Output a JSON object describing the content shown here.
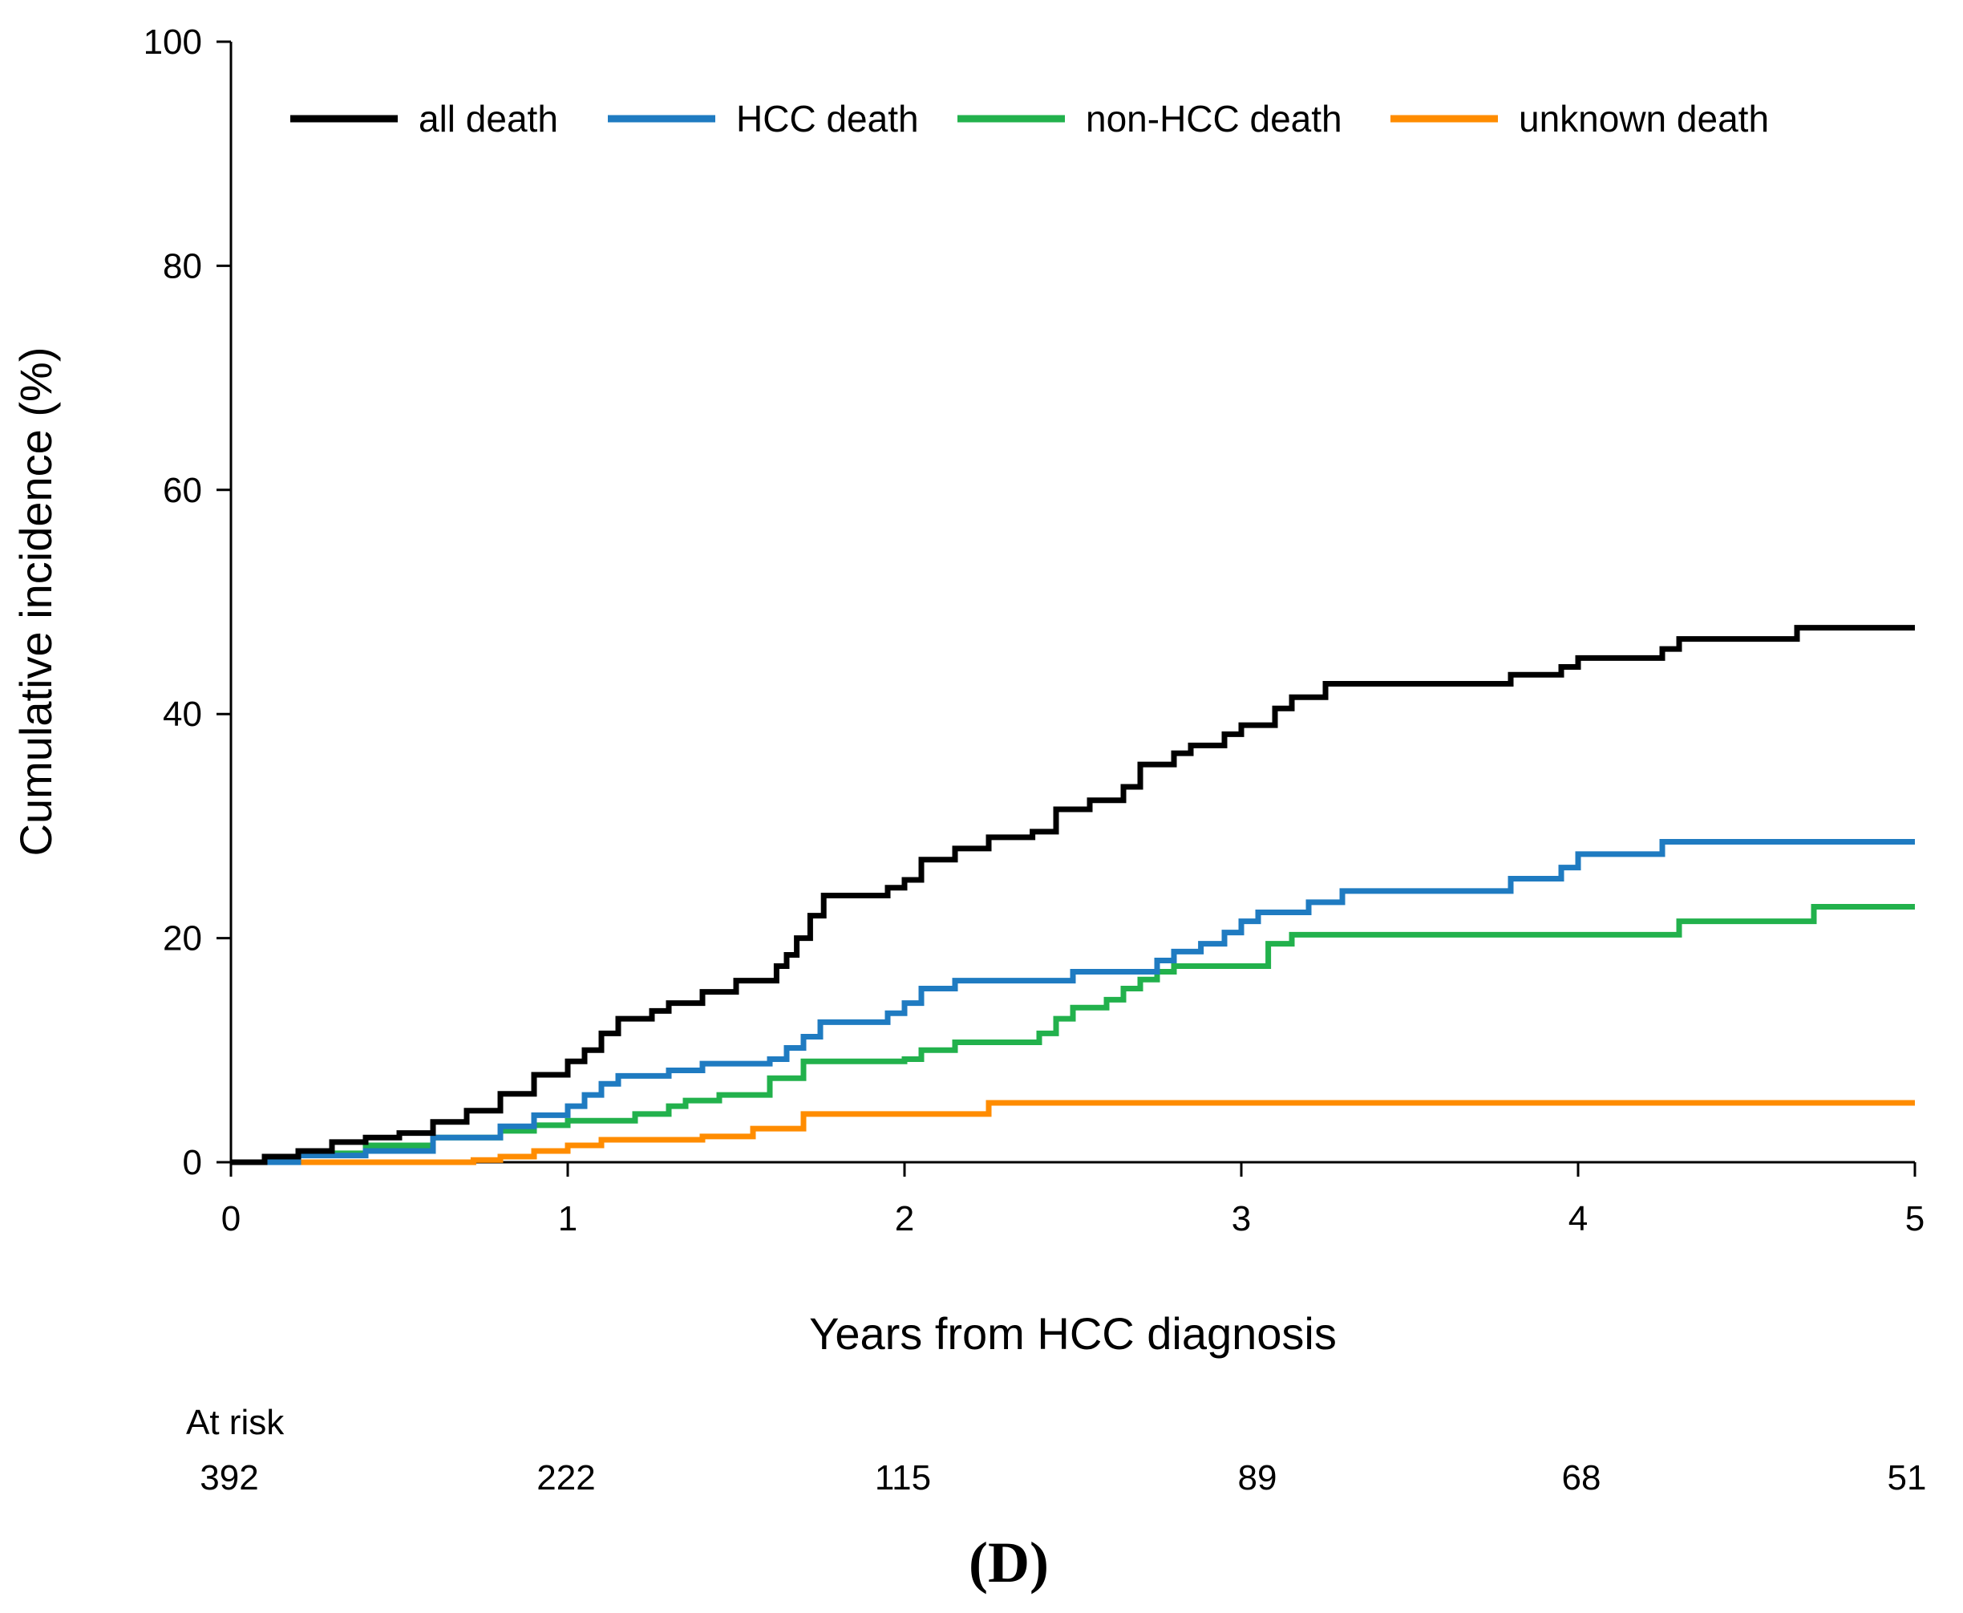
{
  "chart_data": {
    "type": "line",
    "step": true,
    "title": "",
    "xlabel": "Years from HCC diagnosis",
    "ylabel": "Cumulative incidence (%)",
    "xlim": [
      0,
      5
    ],
    "ylim": [
      0,
      100
    ],
    "x_ticks": [
      0,
      1,
      2,
      3,
      4,
      5
    ],
    "y_ticks": [
      0,
      20,
      40,
      60,
      80,
      100
    ],
    "grid": false,
    "legend_position": "top",
    "panel_label": "(D)",
    "at_risk": {
      "label": "At risk",
      "times": [
        0,
        1,
        2,
        3,
        4,
        5
      ],
      "counts": [
        "392",
        "222",
        "115",
        "89",
        "68",
        "51"
      ]
    },
    "series": [
      {
        "name": "all death",
        "color": "#000000",
        "points": [
          [
            0,
            0
          ],
          [
            0.1,
            0.5
          ],
          [
            0.2,
            1.0
          ],
          [
            0.3,
            1.8
          ],
          [
            0.4,
            2.2
          ],
          [
            0.5,
            2.6
          ],
          [
            0.6,
            3.6
          ],
          [
            0.7,
            4.6
          ],
          [
            0.8,
            6.1
          ],
          [
            0.9,
            7.8
          ],
          [
            1.0,
            9.0
          ],
          [
            1.05,
            10.0
          ],
          [
            1.1,
            11.5
          ],
          [
            1.15,
            12.8
          ],
          [
            1.25,
            13.5
          ],
          [
            1.3,
            14.2
          ],
          [
            1.4,
            15.2
          ],
          [
            1.5,
            16.2
          ],
          [
            1.62,
            17.5
          ],
          [
            1.65,
            18.5
          ],
          [
            1.68,
            20.0
          ],
          [
            1.72,
            22.0
          ],
          [
            1.76,
            23.8
          ],
          [
            1.9,
            23.8
          ],
          [
            1.95,
            24.5
          ],
          [
            2.0,
            25.2
          ],
          [
            2.05,
            27.0
          ],
          [
            2.15,
            28.0
          ],
          [
            2.25,
            29.0
          ],
          [
            2.38,
            29.5
          ],
          [
            2.45,
            31.5
          ],
          [
            2.55,
            32.3
          ],
          [
            2.65,
            33.5
          ],
          [
            2.7,
            35.5
          ],
          [
            2.8,
            36.5
          ],
          [
            2.85,
            37.2
          ],
          [
            2.95,
            38.2
          ],
          [
            3.0,
            39.0
          ],
          [
            3.1,
            40.5
          ],
          [
            3.15,
            41.5
          ],
          [
            3.25,
            42.7
          ],
          [
            3.8,
            43.5
          ],
          [
            3.95,
            44.2
          ],
          [
            4.0,
            45.0
          ],
          [
            4.25,
            45.8
          ],
          [
            4.3,
            46.7
          ],
          [
            4.65,
            47.7
          ],
          [
            5.0,
            47.7
          ]
        ]
      },
      {
        "name": "HCC death",
        "color": "#1f7bc1",
        "points": [
          [
            0,
            0
          ],
          [
            0.2,
            0.6
          ],
          [
            0.4,
            1.0
          ],
          [
            0.6,
            2.2
          ],
          [
            0.8,
            3.2
          ],
          [
            0.9,
            4.2
          ],
          [
            1.0,
            5.0
          ],
          [
            1.05,
            6.0
          ],
          [
            1.1,
            7.0
          ],
          [
            1.15,
            7.7
          ],
          [
            1.3,
            8.2
          ],
          [
            1.4,
            8.8
          ],
          [
            1.6,
            9.2
          ],
          [
            1.65,
            10.2
          ],
          [
            1.7,
            11.2
          ],
          [
            1.75,
            12.5
          ],
          [
            1.95,
            13.3
          ],
          [
            2.0,
            14.2
          ],
          [
            2.05,
            15.5
          ],
          [
            2.15,
            16.2
          ],
          [
            2.5,
            17.0
          ],
          [
            2.75,
            18.0
          ],
          [
            2.8,
            18.8
          ],
          [
            2.88,
            19.5
          ],
          [
            2.95,
            20.5
          ],
          [
            3.0,
            21.5
          ],
          [
            3.05,
            22.3
          ],
          [
            3.2,
            23.2
          ],
          [
            3.3,
            24.2
          ],
          [
            3.8,
            25.3
          ],
          [
            3.95,
            26.3
          ],
          [
            4.0,
            27.5
          ],
          [
            4.25,
            28.6
          ],
          [
            5.0,
            28.6
          ]
        ]
      },
      {
        "name": "non-HCC death",
        "color": "#22b14c",
        "points": [
          [
            0,
            0
          ],
          [
            0.2,
            0.8
          ],
          [
            0.4,
            1.5
          ],
          [
            0.6,
            2.2
          ],
          [
            0.8,
            2.8
          ],
          [
            0.9,
            3.3
          ],
          [
            1.0,
            3.7
          ],
          [
            1.2,
            4.3
          ],
          [
            1.3,
            5.0
          ],
          [
            1.35,
            5.5
          ],
          [
            1.45,
            6.0
          ],
          [
            1.6,
            7.5
          ],
          [
            1.7,
            9.0
          ],
          [
            2.0,
            9.2
          ],
          [
            2.05,
            10.0
          ],
          [
            2.15,
            10.7
          ],
          [
            2.4,
            11.5
          ],
          [
            2.45,
            12.8
          ],
          [
            2.5,
            13.8
          ],
          [
            2.6,
            14.5
          ],
          [
            2.65,
            15.5
          ],
          [
            2.7,
            16.3
          ],
          [
            2.75,
            17.0
          ],
          [
            2.8,
            17.5
          ],
          [
            3.08,
            19.5
          ],
          [
            3.15,
            20.3
          ],
          [
            4.3,
            21.5
          ],
          [
            4.7,
            22.8
          ],
          [
            5.0,
            22.8
          ]
        ]
      },
      {
        "name": "unknown death",
        "color": "#ff8c00",
        "points": [
          [
            0,
            0
          ],
          [
            0.72,
            0.2
          ],
          [
            0.8,
            0.5
          ],
          [
            0.9,
            1.0
          ],
          [
            1.0,
            1.5
          ],
          [
            1.1,
            2.0
          ],
          [
            1.4,
            2.3
          ],
          [
            1.55,
            3.0
          ],
          [
            1.7,
            4.3
          ],
          [
            2.25,
            5.3
          ],
          [
            5.0,
            5.3
          ]
        ]
      }
    ]
  }
}
